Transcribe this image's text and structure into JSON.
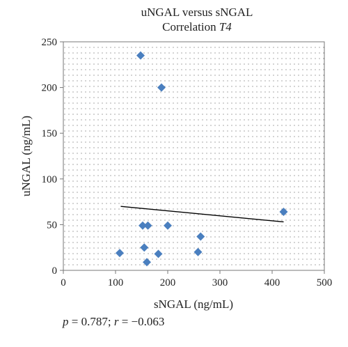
{
  "chart_data": {
    "type": "scatter",
    "title_line1": "uNGAL versus sNGAL",
    "title_line2_prefix": "Correlation ",
    "title_line2_italic": "T4",
    "xlabel": "sNGAL (ng/mL)",
    "ylabel": "uNGAL (ng/mL)",
    "xlim": [
      0,
      500
    ],
    "ylim": [
      0,
      250
    ],
    "xticks": [
      0,
      100,
      200,
      300,
      400,
      500
    ],
    "yticks": [
      0,
      50,
      100,
      150,
      200,
      250
    ],
    "grid": "dotted",
    "marker": "diamond",
    "marker_color": "#4a7fbf",
    "trendline_color": "#000000",
    "points": [
      {
        "x": 148,
        "y": 235
      },
      {
        "x": 188,
        "y": 200
      },
      {
        "x": 422,
        "y": 64
      },
      {
        "x": 152,
        "y": 49
      },
      {
        "x": 162,
        "y": 49
      },
      {
        "x": 200,
        "y": 49
      },
      {
        "x": 263,
        "y": 37
      },
      {
        "x": 155,
        "y": 25
      },
      {
        "x": 258,
        "y": 20
      },
      {
        "x": 108,
        "y": 19
      },
      {
        "x": 182,
        "y": 18
      },
      {
        "x": 160,
        "y": 9
      }
    ],
    "trendline": [
      {
        "x": 110,
        "y": 70
      },
      {
        "x": 422,
        "y": 53
      }
    ]
  },
  "stats": {
    "p_label": "p",
    "p_text": " = 0.787; ",
    "r_label": "r",
    "r_text": " = −0.063"
  }
}
